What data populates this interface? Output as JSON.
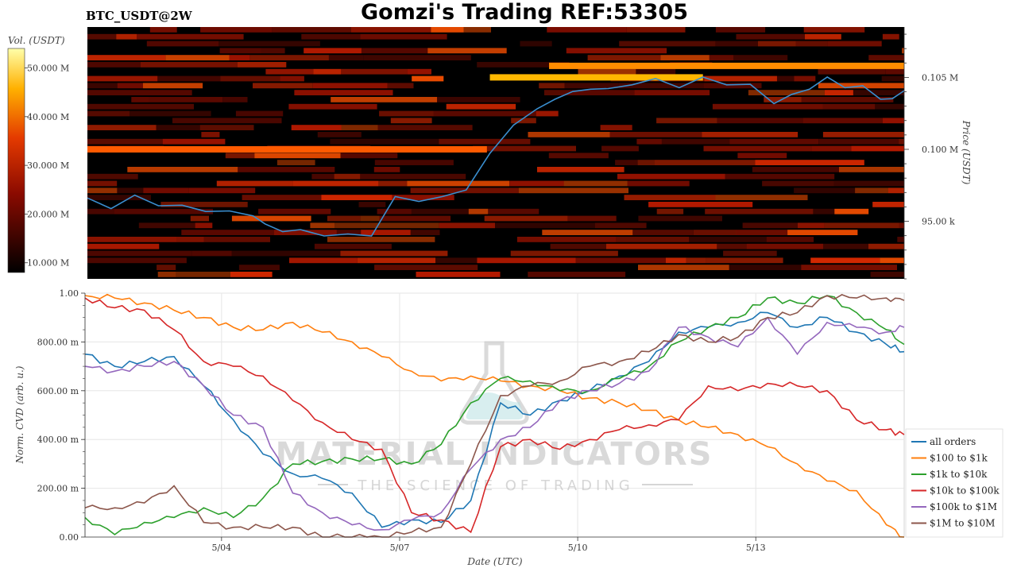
{
  "header": {
    "title": "Gomzi's Trading REF:53305",
    "symbol": "BTC_USDT@2W"
  },
  "watermark": {
    "line1": "MATERIAL INDICATORS",
    "line2": "THE SCIENCE OF TRADING"
  },
  "chart_data": [
    {
      "type": "heatmap",
      "name": "orderbook-liquidity-heatmap",
      "colorbar": {
        "label": "Vol. (USDT)",
        "ticks": [
          "10.000 M",
          "20.000 M",
          "30.000 M",
          "40.000 M",
          "50.000 M"
        ],
        "values": [
          10000000,
          20000000,
          30000000,
          40000000,
          50000000
        ],
        "range": [
          8000000,
          54000000
        ]
      },
      "ylabel": "Price (USDT)",
      "yticks": [
        "95.00 k",
        "0.100 M",
        "0.105 M"
      ],
      "ytick_values": [
        95000,
        100000,
        105000
      ],
      "ylim": [
        91000,
        108500
      ],
      "colors": {
        "low": "#000000",
        "mid": "#c81e00",
        "high": "#ffffff",
        "price_line": "#3a8fd0"
      },
      "xlim": [
        0,
        13.8
      ],
      "price_series": {
        "x": [
          0,
          0.4,
          0.8,
          1.2,
          1.6,
          2.0,
          2.4,
          2.8,
          3.0,
          3.3,
          3.6,
          4.0,
          4.4,
          4.8,
          5.2,
          5.6,
          6.0,
          6.4,
          6.8,
          7.2,
          7.6,
          7.9,
          8.2,
          8.5,
          8.8,
          9.2,
          9.6,
          10.0,
          10.4,
          10.8,
          11.2,
          11.6,
          11.9,
          12.2,
          12.5,
          12.8,
          13.1,
          13.4,
          13.6,
          13.8
        ],
        "y": [
          96500,
          96000,
          96700,
          96200,
          96000,
          95800,
          95600,
          95500,
          94700,
          94400,
          94300,
          94100,
          94000,
          94100,
          96600,
          96500,
          96600,
          97300,
          99600,
          101800,
          102700,
          103600,
          103900,
          104300,
          104100,
          104600,
          104800,
          104400,
          104900,
          104600,
          104400,
          103300,
          103700,
          104300,
          104900,
          104400,
          104300,
          103600,
          103400,
          104200
        ]
      }
    },
    {
      "type": "line",
      "name": "normalized-cvd",
      "xlabel": "Date (UTC)",
      "ylabel": "Norm. CVD (arb. u.)",
      "ylim": [
        0,
        1
      ],
      "xlim": [
        0,
        13.8
      ],
      "xticks": [
        "5/04",
        "5/07",
        "5/10",
        "5/13"
      ],
      "xtick_values": [
        2.3,
        5.3,
        8.3,
        11.3
      ],
      "yticks": [
        "0.00",
        "200.00 m",
        "400.00 m",
        "600.00 m",
        "800.00 m",
        "1.00"
      ],
      "ytick_values": [
        0,
        0.2,
        0.4,
        0.6,
        0.8,
        1.0
      ],
      "grid": true,
      "legend": "right-bottom",
      "x": [
        0,
        0.5,
        1.0,
        1.5,
        2.0,
        2.5,
        3.0,
        3.5,
        4.0,
        4.5,
        5.0,
        5.5,
        6.0,
        6.5,
        7.0,
        7.5,
        8.0,
        8.5,
        9.0,
        9.5,
        10.0,
        10.5,
        11.0,
        11.5,
        12.0,
        12.5,
        13.0,
        13.5,
        13.8
      ],
      "series": [
        {
          "name": "all orders",
          "color": "#1f77b4",
          "values": [
            0.75,
            0.7,
            0.72,
            0.74,
            0.62,
            0.48,
            0.34,
            0.26,
            0.24,
            0.18,
            0.04,
            0.07,
            0.06,
            0.15,
            0.55,
            0.5,
            0.56,
            0.6,
            0.66,
            0.72,
            0.84,
            0.86,
            0.88,
            0.92,
            0.86,
            0.9,
            0.84,
            0.79,
            0.76
          ]
        },
        {
          "name": "$100 to $1k",
          "color": "#ff7f0e",
          "values": [
            0.99,
            0.98,
            0.96,
            0.93,
            0.9,
            0.86,
            0.85,
            0.88,
            0.84,
            0.8,
            0.74,
            0.68,
            0.64,
            0.66,
            0.64,
            0.62,
            0.6,
            0.57,
            0.55,
            0.52,
            0.48,
            0.45,
            0.42,
            0.37,
            0.3,
            0.23,
            0.19,
            0.05,
            0.0
          ]
        },
        {
          "name": "$1k to $10k",
          "color": "#2ca02c",
          "values": [
            0.08,
            0.01,
            0.06,
            0.08,
            0.12,
            0.08,
            0.16,
            0.3,
            0.31,
            0.32,
            0.32,
            0.3,
            0.38,
            0.55,
            0.65,
            0.64,
            0.6,
            0.6,
            0.65,
            0.7,
            0.8,
            0.86,
            0.9,
            0.98,
            0.96,
            0.99,
            0.92,
            0.85,
            0.79
          ]
        },
        {
          "name": "$10k to $100k",
          "color": "#d62728",
          "values": [
            0.98,
            0.94,
            0.93,
            0.85,
            0.72,
            0.7,
            0.66,
            0.56,
            0.47,
            0.4,
            0.36,
            0.1,
            0.07,
            0.02,
            0.37,
            0.4,
            0.36,
            0.4,
            0.44,
            0.46,
            0.48,
            0.62,
            0.6,
            0.63,
            0.62,
            0.6,
            0.48,
            0.44,
            0.42
          ]
        },
        {
          "name": "$100k to $1M",
          "color": "#9467bd",
          "values": [
            0.7,
            0.68,
            0.7,
            0.72,
            0.62,
            0.5,
            0.45,
            0.18,
            0.1,
            0.05,
            0.03,
            0.07,
            0.1,
            0.28,
            0.4,
            0.45,
            0.56,
            0.6,
            0.63,
            0.68,
            0.86,
            0.82,
            0.78,
            0.9,
            0.75,
            0.88,
            0.86,
            0.84,
            0.86
          ]
        },
        {
          "name": "$1M to $10M",
          "color": "#8c564b",
          "values": [
            0.12,
            0.12,
            0.14,
            0.21,
            0.06,
            0.04,
            0.04,
            0.04,
            0.0,
            0.0,
            0.0,
            0.02,
            0.04,
            0.3,
            0.58,
            0.62,
            0.64,
            0.7,
            0.72,
            0.76,
            0.83,
            0.8,
            0.82,
            0.9,
            0.92,
            0.99,
            0.98,
            0.98,
            0.97
          ]
        }
      ]
    }
  ]
}
